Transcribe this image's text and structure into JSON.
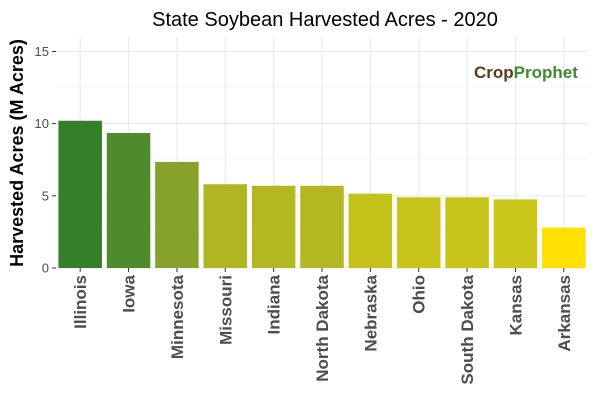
{
  "chart_data": {
    "type": "bar",
    "title": "State Soybean Harvested Acres - 2020",
    "xlabel": "",
    "ylabel": "Harvested Acres (M Acres)",
    "categories": [
      "Illinois",
      "Iowa",
      "Minnesota",
      "Missouri",
      "Indiana",
      "North Dakota",
      "Nebraska",
      "Ohio",
      "South Dakota",
      "Kansas",
      "Arkansas"
    ],
    "values": [
      10.2,
      9.35,
      7.35,
      5.8,
      5.7,
      5.7,
      5.15,
      4.9,
      4.9,
      4.75,
      2.8
    ],
    "bar_colors": [
      "#367f2a",
      "#4d8b2c",
      "#86a22b",
      "#b0b522",
      "#b3b722",
      "#b3b722",
      "#c5c11b",
      "#c9c41b",
      "#c9c41b",
      "#cbc61a",
      "#ffe000"
    ],
    "ylim": [
      0,
      16
    ],
    "y_ticks": [
      0,
      5,
      10,
      15
    ],
    "grid": true,
    "legend": "none"
  },
  "branding": {
    "logo_part1": "Crop",
    "logo_part2": "Prophet",
    "logo_color1": "#5a3a1e",
    "logo_color2": "#3d8a2e"
  },
  "colors": {
    "panel_background": "#ffffff",
    "grid_major": "#ebebeb",
    "grid_minor": "#f5f5f5",
    "axis_text": "#4d4d4d"
  }
}
